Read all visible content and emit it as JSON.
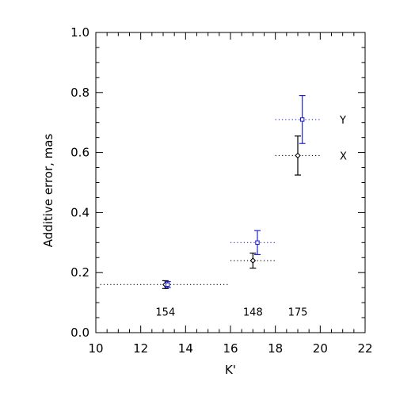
{
  "chart_data": {
    "type": "scatter",
    "title": "",
    "xlabel": "K'",
    "ylabel": "Additive error, mas",
    "xlim": [
      10,
      22
    ],
    "ylim": [
      0.0,
      1.0
    ],
    "x_ticks": [
      10,
      12,
      14,
      16,
      18,
      20,
      22
    ],
    "x_tick_labels": [
      "10",
      "12",
      "14",
      "16",
      "18",
      "20",
      "22"
    ],
    "y_ticks": [
      0.0,
      0.2,
      0.4,
      0.6,
      0.8,
      1.0
    ],
    "y_tick_labels": [
      "0.0",
      "0.2",
      "0.4",
      "0.6",
      "0.8",
      "1.0"
    ],
    "x_minor_step": 0.5,
    "y_minor_step": 0.05,
    "series": [
      {
        "name": "X",
        "color": "#000000",
        "marker": "diamond",
        "points": [
          {
            "x": 13.1,
            "y": 0.16,
            "yerr": 0.013,
            "xrange": [
              10.2,
              15.9
            ]
          },
          {
            "x": 17.0,
            "y": 0.24,
            "yerr": 0.025,
            "xrange": [
              16.0,
              18.0
            ]
          },
          {
            "x": 19.0,
            "y": 0.59,
            "yerr": 0.065,
            "xrange": [
              18.0,
              20.0
            ]
          }
        ]
      },
      {
        "name": "Y",
        "color": "#2222cc",
        "marker": "square",
        "points": [
          {
            "x": 13.2,
            "y": 0.16,
            "yerr": 0.01
          },
          {
            "x": 17.2,
            "y": 0.3,
            "yerr": 0.04,
            "xrange": [
              16.0,
              18.0
            ]
          },
          {
            "x": 19.2,
            "y": 0.71,
            "yerr": 0.08,
            "xrange": [
              18.0,
              20.0
            ]
          }
        ]
      }
    ],
    "series_labels": [
      {
        "text": "Y",
        "x": 20.8,
        "y": 0.71
      },
      {
        "text": "X",
        "x": 20.8,
        "y": 0.59
      }
    ],
    "count_labels": [
      {
        "text": "154",
        "x": 13.1,
        "y": 0.07
      },
      {
        "text": "148",
        "x": 17.0,
        "y": 0.07
      },
      {
        "text": "175",
        "x": 19.0,
        "y": 0.07
      }
    ]
  }
}
